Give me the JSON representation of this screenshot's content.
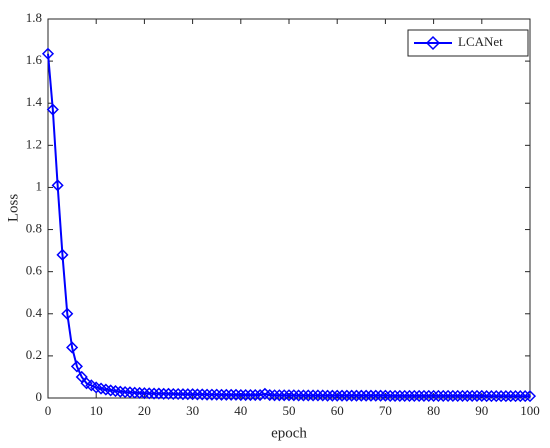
{
  "chart_data": {
    "type": "line",
    "xlabel": "epoch",
    "ylabel": "Loss",
    "x": [
      0,
      1,
      2,
      3,
      4,
      5,
      6,
      7,
      8,
      9,
      10,
      11,
      12,
      13,
      14,
      15,
      16,
      17,
      18,
      19,
      20,
      21,
      22,
      23,
      24,
      25,
      26,
      27,
      28,
      29,
      30,
      31,
      32,
      33,
      34,
      35,
      36,
      37,
      38,
      39,
      40,
      41,
      42,
      43,
      44,
      45,
      46,
      47,
      48,
      49,
      50,
      51,
      52,
      53,
      54,
      55,
      56,
      57,
      58,
      59,
      60,
      61,
      62,
      63,
      64,
      65,
      66,
      67,
      68,
      69,
      70,
      71,
      72,
      73,
      74,
      75,
      76,
      77,
      78,
      79,
      80,
      81,
      82,
      83,
      84,
      85,
      86,
      87,
      88,
      89,
      90,
      91,
      92,
      93,
      94,
      95,
      96,
      97,
      98,
      99,
      100
    ],
    "series": [
      {
        "name": "LCANet",
        "color": "#0000ff",
        "values": [
          1.635,
          1.37,
          1.01,
          0.68,
          0.4,
          0.24,
          0.15,
          0.1,
          0.07,
          0.06,
          0.05,
          0.045,
          0.04,
          0.036,
          0.033,
          0.03,
          0.028,
          0.027,
          0.025,
          0.024,
          0.023,
          0.022,
          0.021,
          0.021,
          0.02,
          0.02,
          0.019,
          0.019,
          0.018,
          0.018,
          0.018,
          0.017,
          0.017,
          0.016,
          0.016,
          0.016,
          0.015,
          0.015,
          0.015,
          0.015,
          0.014,
          0.014,
          0.014,
          0.014,
          0.014,
          0.02,
          0.014,
          0.013,
          0.013,
          0.013,
          0.013,
          0.013,
          0.012,
          0.012,
          0.012,
          0.012,
          0.012,
          0.012,
          0.011,
          0.011,
          0.011,
          0.011,
          0.011,
          0.011,
          0.011,
          0.011,
          0.011,
          0.011,
          0.011,
          0.011,
          0.011,
          0.01,
          0.01,
          0.01,
          0.01,
          0.01,
          0.01,
          0.01,
          0.01,
          0.01,
          0.01,
          0.01,
          0.01,
          0.01,
          0.01,
          0.01,
          0.01,
          0.01,
          0.01,
          0.01,
          0.01,
          0.009,
          0.009,
          0.009,
          0.009,
          0.009,
          0.009,
          0.009,
          0.009,
          0.009,
          0.009
        ]
      }
    ],
    "xlim": [
      0,
      100
    ],
    "xticks": [
      0,
      10,
      20,
      30,
      40,
      50,
      60,
      70,
      80,
      90,
      100
    ],
    "ylim": [
      0,
      1.8
    ],
    "yticks": [
      0,
      0.2,
      0.4,
      0.6,
      0.8,
      1,
      1.2,
      1.4,
      1.6,
      1.8
    ],
    "grid": false,
    "legend": "upper right"
  }
}
